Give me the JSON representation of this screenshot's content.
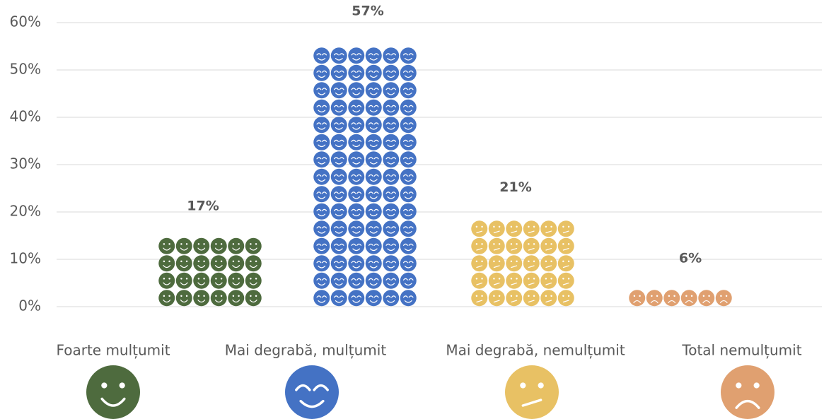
{
  "chart_data": {
    "type": "pictograph",
    "categories": [
      "Foarte mulțumit",
      "Mai degrabă, mulțumit",
      "Mai degrabă, nemulțumit",
      "Total nemulțumit"
    ],
    "values": [
      17,
      57,
      21,
      6
    ],
    "value_labels": [
      "17%",
      "57%",
      "21%",
      "6%"
    ],
    "colors": [
      "#4e6b3e",
      "#4472c4",
      "#e8c164",
      "#e0a070"
    ],
    "ylim": [
      0,
      60
    ],
    "yticks": [
      {
        "value": 0,
        "label": "0%"
      },
      {
        "value": 10,
        "label": "10%"
      },
      {
        "value": 20,
        "label": "20%"
      },
      {
        "value": 30,
        "label": "30%"
      },
      {
        "value": 40,
        "label": "40%"
      },
      {
        "value": 50,
        "label": "50%"
      },
      {
        "value": 60,
        "label": "60%"
      }
    ],
    "grid": true
  }
}
